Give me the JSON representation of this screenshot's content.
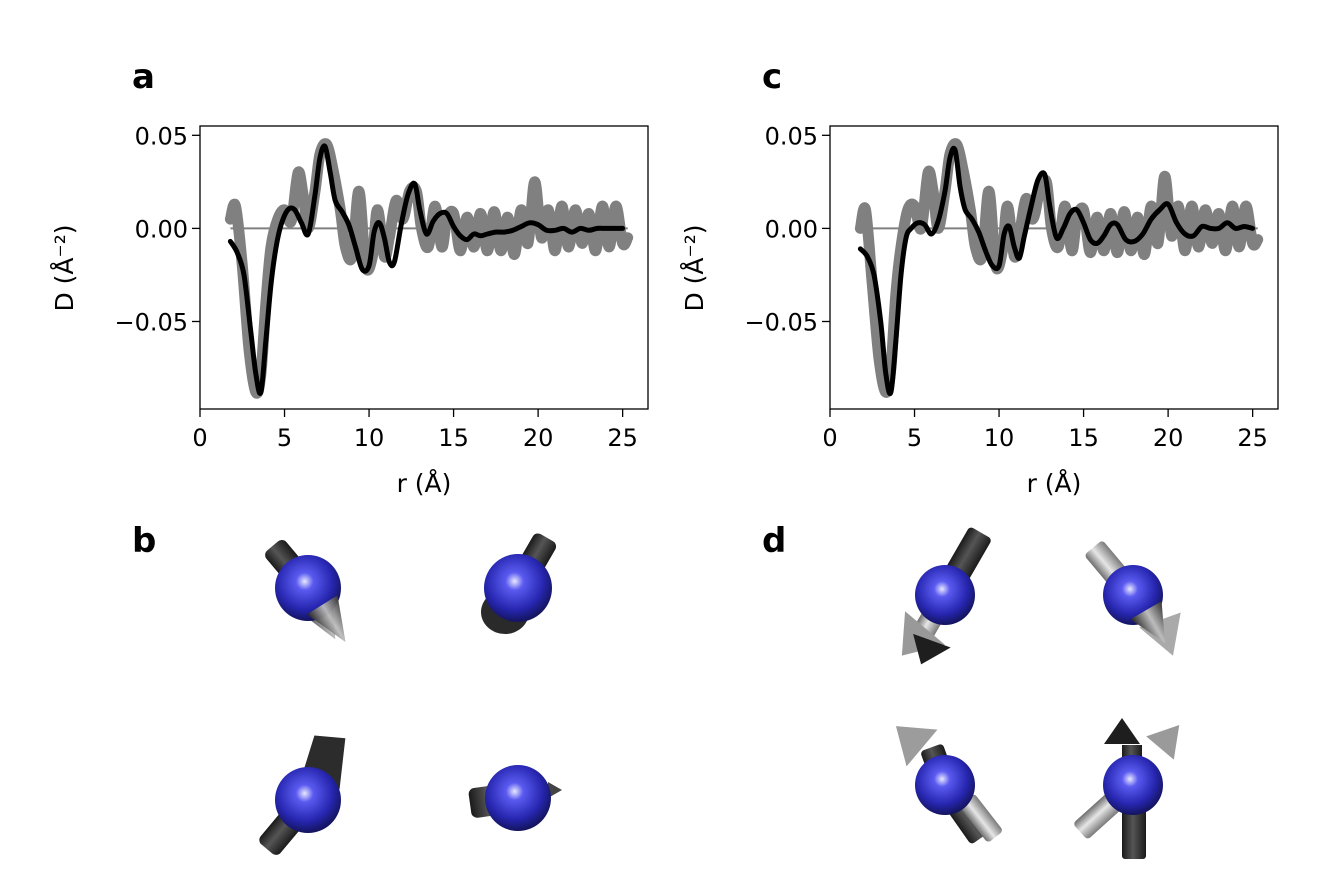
{
  "panels": {
    "a": "a",
    "b": "b",
    "c": "c",
    "d": "d"
  },
  "colors": {
    "thick_series": "#808080",
    "thin_series": "#000000",
    "zero_line": "#808080",
    "sphere": "#2a2ab8"
  },
  "chart_data": [
    {
      "panel": "a",
      "type": "line",
      "xlabel": "r (Å)",
      "ylabel": "D (Å⁻²)",
      "xlim": [
        0,
        26.5
      ],
      "ylim": [
        -0.097,
        0.055
      ],
      "xticks": [
        0,
        5,
        10,
        15,
        20,
        25
      ],
      "yticks": [
        0.05,
        0.0,
        -0.05
      ],
      "ytick_labels": [
        "0.05",
        "0.00",
        "−0.05"
      ],
      "grid": false,
      "reference_line_y": 0,
      "series": [
        {
          "style": "thick",
          "x": [
            1.8,
            2.1,
            2.5,
            2.9,
            3.3,
            3.6,
            3.9,
            4.2,
            4.6,
            5.0,
            5.4,
            5.8,
            6.1,
            6.4,
            6.8,
            7.1,
            7.5,
            7.9,
            8.3,
            8.6,
            9.0,
            9.4,
            9.8,
            10.2,
            10.5,
            10.9,
            11.2,
            11.6,
            12.0,
            12.4,
            12.8,
            13.1,
            13.5,
            13.9,
            14.3,
            14.6,
            15.0,
            15.4,
            15.8,
            16.2,
            16.6,
            17.0,
            17.4,
            17.8,
            18.2,
            18.6,
            19.0,
            19.4,
            19.8,
            20.2,
            20.6,
            21.0,
            21.4,
            21.8,
            22.2,
            22.6,
            23.0,
            23.4,
            23.8,
            24.2,
            24.6,
            25.0,
            25.3
          ],
          "y": [
            0.005,
            0.012,
            -0.02,
            -0.065,
            -0.088,
            -0.078,
            -0.04,
            -0.01,
            0.005,
            0.01,
            0.004,
            0.03,
            0.018,
            0.0,
            0.02,
            0.04,
            0.045,
            0.03,
            0.01,
            -0.01,
            -0.015,
            0.02,
            -0.02,
            -0.015,
            0.01,
            -0.015,
            -0.005,
            0.015,
            0.005,
            0.02,
            0.02,
            0.0,
            -0.01,
            0.012,
            -0.01,
            0.005,
            0.008,
            -0.012,
            0.006,
            -0.01,
            0.008,
            -0.012,
            0.009,
            -0.012,
            0.006,
            -0.014,
            0.01,
            -0.008,
            0.025,
            -0.005,
            0.01,
            -0.012,
            0.012,
            -0.01,
            0.01,
            -0.008,
            0.008,
            -0.012,
            0.012,
            -0.01,
            0.012,
            -0.008,
            -0.005
          ]
        },
        {
          "style": "thin",
          "x": [
            1.8,
            2.2,
            2.6,
            3.0,
            3.3,
            3.6,
            3.9,
            4.2,
            4.5,
            4.8,
            5.2,
            5.6,
            6.0,
            6.4,
            6.8,
            7.1,
            7.4,
            7.7,
            8.0,
            8.4,
            8.8,
            9.2,
            9.6,
            10.0,
            10.3,
            10.6,
            10.9,
            11.2,
            11.5,
            11.9,
            12.3,
            12.7,
            13.0,
            13.4,
            13.8,
            14.2,
            14.6,
            15.0,
            15.4,
            15.8,
            16.2,
            16.6,
            17.0,
            17.5,
            18.0,
            18.5,
            19.0,
            19.5,
            20.0,
            20.5,
            21.0,
            21.5,
            22.0,
            22.5,
            23.0,
            23.5,
            24.0,
            24.5,
            25.0
          ],
          "y": [
            -0.007,
            -0.013,
            -0.025,
            -0.055,
            -0.078,
            -0.088,
            -0.06,
            -0.03,
            -0.01,
            0.002,
            0.01,
            0.01,
            0.003,
            -0.003,
            0.018,
            0.038,
            0.044,
            0.03,
            0.015,
            0.009,
            0.002,
            -0.01,
            -0.022,
            -0.02,
            -0.002,
            0.003,
            -0.005,
            -0.018,
            -0.018,
            0.002,
            0.018,
            0.024,
            0.01,
            -0.003,
            0.004,
            0.008,
            0.008,
            0.001,
            -0.004,
            -0.006,
            -0.003,
            -0.004,
            -0.003,
            -0.002,
            -0.002,
            -0.001,
            0.001,
            0.003,
            0.002,
            -0.001,
            -0.001,
            0.0,
            -0.002,
            0.0,
            -0.001,
            0.0,
            0.0,
            0.0,
            0.0
          ]
        }
      ]
    },
    {
      "panel": "c",
      "type": "line",
      "xlabel": "r (Å)",
      "ylabel": "D (Å⁻²)",
      "xlim": [
        0,
        26.5
      ],
      "ylim": [
        -0.097,
        0.055
      ],
      "xticks": [
        0,
        5,
        10,
        15,
        20,
        25
      ],
      "yticks": [
        0.05,
        0.0,
        -0.05
      ],
      "ytick_labels": [
        "0.05",
        "0.00",
        "−0.05"
      ],
      "grid": false,
      "reference_line_y": 0,
      "series": [
        {
          "style": "thick",
          "x": [
            1.8,
            2.1,
            2.5,
            2.9,
            3.3,
            3.6,
            3.9,
            4.2,
            4.6,
            5.0,
            5.4,
            5.8,
            6.1,
            6.4,
            6.8,
            7.1,
            7.5,
            7.9,
            8.3,
            8.6,
            9.0,
            9.4,
            9.8,
            10.2,
            10.5,
            10.9,
            11.2,
            11.6,
            12.0,
            12.4,
            12.8,
            13.1,
            13.5,
            13.9,
            14.3,
            14.6,
            15.0,
            15.4,
            15.8,
            16.2,
            16.6,
            17.0,
            17.4,
            17.8,
            18.2,
            18.6,
            19.0,
            19.4,
            19.8,
            20.2,
            20.6,
            21.0,
            21.4,
            21.8,
            22.2,
            22.6,
            23.0,
            23.4,
            23.8,
            24.2,
            24.6,
            25.0,
            25.3
          ],
          "y": [
            0.0,
            0.01,
            -0.03,
            -0.07,
            -0.088,
            -0.075,
            -0.035,
            -0.01,
            0.01,
            0.012,
            0.0,
            0.03,
            0.02,
            0.0,
            0.02,
            0.04,
            0.045,
            0.03,
            0.01,
            -0.01,
            -0.015,
            0.02,
            -0.02,
            -0.012,
            0.012,
            -0.015,
            -0.004,
            0.016,
            0.005,
            0.02,
            0.025,
            0.0,
            -0.01,
            0.012,
            -0.012,
            0.005,
            0.01,
            -0.013,
            0.006,
            -0.012,
            0.008,
            -0.013,
            0.009,
            -0.012,
            0.006,
            -0.014,
            0.012,
            -0.008,
            0.028,
            -0.004,
            0.012,
            -0.012,
            0.012,
            -0.01,
            0.01,
            -0.008,
            0.008,
            -0.012,
            0.012,
            -0.01,
            0.012,
            -0.008,
            -0.006
          ]
        },
        {
          "style": "thin",
          "x": [
            1.8,
            2.2,
            2.6,
            3.0,
            3.3,
            3.6,
            3.9,
            4.2,
            4.5,
            4.8,
            5.2,
            5.6,
            6.0,
            6.4,
            6.8,
            7.1,
            7.4,
            7.7,
            8.0,
            8.4,
            8.8,
            9.2,
            9.6,
            10.0,
            10.3,
            10.6,
            10.9,
            11.2,
            11.5,
            11.9,
            12.3,
            12.7,
            13.0,
            13.4,
            13.8,
            14.2,
            14.6,
            15.0,
            15.4,
            15.8,
            16.2,
            16.6,
            17.0,
            17.5,
            18.0,
            18.5,
            19.0,
            19.5,
            20.0,
            20.5,
            21.0,
            21.5,
            22.0,
            22.5,
            23.0,
            23.5,
            24.0,
            24.5,
            25.0
          ],
          "y": [
            -0.011,
            -0.015,
            -0.025,
            -0.05,
            -0.078,
            -0.088,
            -0.06,
            -0.025,
            -0.005,
            0.0,
            0.003,
            0.002,
            -0.003,
            0.004,
            0.02,
            0.038,
            0.042,
            0.022,
            0.01,
            0.005,
            -0.002,
            -0.012,
            -0.02,
            -0.02,
            -0.003,
            0.001,
            -0.01,
            -0.016,
            -0.004,
            0.012,
            0.026,
            0.029,
            0.012,
            -0.005,
            0.0,
            0.008,
            0.01,
            0.003,
            -0.006,
            -0.008,
            -0.004,
            0.002,
            0.002,
            -0.006,
            -0.007,
            -0.003,
            0.005,
            0.01,
            0.013,
            0.003,
            -0.003,
            -0.004,
            0.001,
            0.0,
            0.0,
            0.003,
            0.0,
            0.001,
            0.0
          ]
        }
      ]
    }
  ]
}
